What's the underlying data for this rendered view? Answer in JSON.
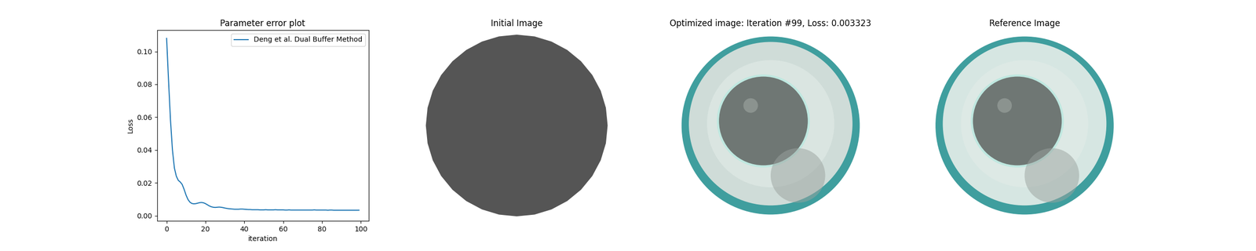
{
  "chart_data": [
    {
      "type": "line",
      "title": "Parameter error plot",
      "x_label": "iteration",
      "y_label": "Loss",
      "x": [
        0,
        1,
        2,
        3,
        4,
        5,
        6,
        7,
        8,
        9,
        10,
        11,
        12,
        13,
        14,
        15,
        16,
        17,
        18,
        19,
        20,
        21,
        22,
        23,
        24,
        25,
        26,
        27,
        28,
        29,
        30,
        31,
        32,
        33,
        34,
        35,
        36,
        37,
        38,
        39,
        40,
        41,
        42,
        43,
        44,
        45,
        46,
        47,
        48,
        49,
        50,
        51,
        52,
        53,
        54,
        55,
        56,
        57,
        58,
        59,
        60,
        61,
        62,
        63,
        64,
        65,
        66,
        67,
        68,
        69,
        70,
        71,
        72,
        73,
        74,
        75,
        76,
        77,
        78,
        79,
        80,
        81,
        82,
        83,
        84,
        85,
        86,
        87,
        88,
        89,
        90,
        91,
        92,
        93,
        94,
        95,
        96,
        97,
        98,
        99
      ],
      "series": [
        {
          "name": "Deng et al. Dual Buffer Method",
          "color": "#1f77b4",
          "values": [
            0.108,
            0.082,
            0.058,
            0.04,
            0.029,
            0.024,
            0.0215,
            0.0205,
            0.019,
            0.016,
            0.0125,
            0.0098,
            0.0082,
            0.0074,
            0.0072,
            0.0073,
            0.0076,
            0.0079,
            0.008,
            0.0078,
            0.0073,
            0.0066,
            0.0059,
            0.0054,
            0.0051,
            0.005,
            0.0051,
            0.0052,
            0.0051,
            0.0049,
            0.0046,
            0.0044,
            0.0042,
            0.0041,
            0.004,
            0.0039,
            0.0039,
            0.0039,
            0.004,
            0.004,
            0.0039,
            0.0038,
            0.0037,
            0.0037,
            0.0036,
            0.0036,
            0.0036,
            0.0036,
            0.0035,
            0.0035,
            0.0035,
            0.0036,
            0.0035,
            0.0035,
            0.0035,
            0.0035,
            0.0036,
            0.0035,
            0.0035,
            0.0035,
            0.0035,
            0.0034,
            0.0034,
            0.0035,
            0.0034,
            0.0034,
            0.0034,
            0.0034,
            0.0034,
            0.0034,
            0.0034,
            0.0034,
            0.0034,
            0.0034,
            0.0034,
            0.0034,
            0.0035,
            0.0034,
            0.0034,
            0.0034,
            0.0034,
            0.0034,
            0.0034,
            0.0033,
            0.0034,
            0.0034,
            0.0033,
            0.0033,
            0.0033,
            0.0033,
            0.0033,
            0.0033,
            0.0033,
            0.0033,
            0.0033,
            0.0033,
            0.0033,
            0.0033,
            0.0033,
            0.003323
          ]
        }
      ],
      "xlim": [
        -4.95,
        103.95
      ],
      "ylim": [
        -0.0032,
        0.113
      ],
      "xticks": [
        0,
        20,
        40,
        60,
        80,
        100
      ],
      "yticks": [
        {
          "value": 0,
          "label": "0.00"
        },
        {
          "value": 0.02,
          "label": "0.02"
        },
        {
          "value": 0.04,
          "label": "0.04"
        },
        {
          "value": 0.06,
          "label": "0.06"
        },
        {
          "value": 0.08,
          "label": "0.08"
        },
        {
          "value": 0.1,
          "label": "0.10"
        }
      ],
      "legend": "upper right",
      "grid": false
    },
    {
      "type": "image",
      "title": "Initial Image"
    },
    {
      "type": "image",
      "title": "Optimized image: Iteration #99, Loss: 0.003323"
    },
    {
      "type": "image",
      "title": "Reference Image"
    }
  ]
}
